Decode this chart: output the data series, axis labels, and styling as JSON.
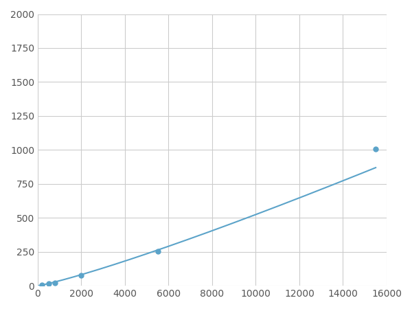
{
  "x": [
    200,
    500,
    800,
    2000,
    5500,
    15500
  ],
  "y": [
    7,
    17,
    22,
    75,
    255,
    1005
  ],
  "xlim": [
    0,
    16000
  ],
  "ylim": [
    0,
    2000
  ],
  "xticks": [
    0,
    2000,
    4000,
    6000,
    8000,
    10000,
    12000,
    14000,
    16000
  ],
  "yticks": [
    0,
    250,
    500,
    750,
    1000,
    1250,
    1500,
    1750,
    2000
  ],
  "line_color": "#5ba3c9",
  "marker_color": "#5ba3c9",
  "grid_color": "#cccccc",
  "background_color": "#ffffff",
  "marker_size": 5,
  "line_width": 1.5
}
